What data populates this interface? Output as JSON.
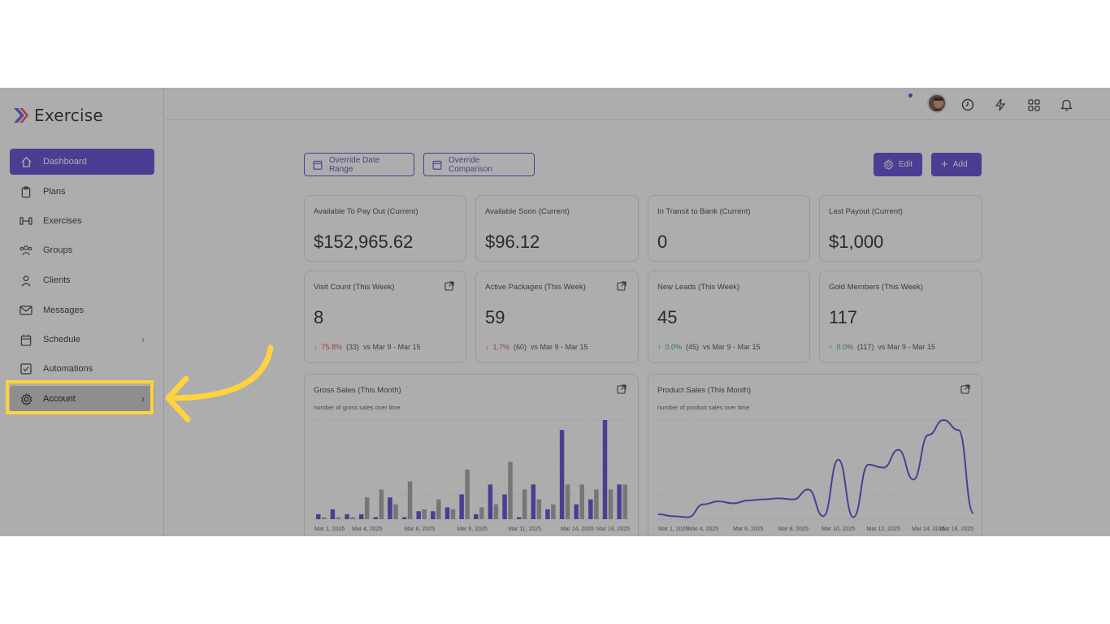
{
  "app": {
    "name": "Exercise"
  },
  "sidebar": {
    "items": [
      {
        "label": "Dashboard",
        "icon": "home-icon"
      },
      {
        "label": "Plans",
        "icon": "clipboard-icon"
      },
      {
        "label": "Exercises",
        "icon": "dumbbell-icon"
      },
      {
        "label": "Groups",
        "icon": "users-icon"
      },
      {
        "label": "Clients",
        "icon": "user-icon"
      },
      {
        "label": "Messages",
        "icon": "mail-icon"
      },
      {
        "label": "Schedule",
        "icon": "calendar-icon"
      },
      {
        "label": "Automations",
        "icon": "checkbox-icon"
      },
      {
        "label": "Account",
        "icon": "gear-icon"
      }
    ]
  },
  "toolbar": {
    "override_date": "Override Date Range",
    "override_comparison": "Override Comparison",
    "edit": "Edit",
    "add": "Add"
  },
  "stats": [
    {
      "label": "Available To Pay Out (Current)",
      "value": "$152,965.62"
    },
    {
      "label": "Available Soon (Current)",
      "value": "$96.12"
    },
    {
      "label": "In Transit to Bank (Current)",
      "value": "0"
    },
    {
      "label": "Last Payout (Current)",
      "value": "$1,000"
    }
  ],
  "weekly": [
    {
      "label": "Visit Count (This Week)",
      "value": "8",
      "pct": "75.8%",
      "prev": "(33)",
      "range": "vs Mar 9 - Mar 15",
      "dir": "down"
    },
    {
      "label": "Active Packages (This Week)",
      "value": "59",
      "pct": "1.7%",
      "prev": "(60)",
      "range": "vs Mar 9 - Mar 15",
      "dir": "down"
    },
    {
      "label": "New Leads (This Week)",
      "value": "45",
      "pct": "0.0%",
      "prev": "(45)",
      "range": "vs Mar 9 - Mar 15",
      "dir": "up"
    },
    {
      "label": "Gold Members (This Week)",
      "value": "117",
      "pct": "0.0%",
      "prev": "(117)",
      "range": "vs Mar 9 - Mar 15",
      "dir": "up"
    }
  ],
  "charts": {
    "gross": {
      "title": "Gross Sales (This Month)",
      "subtitle": "number of gross sales over time"
    },
    "product": {
      "title": "Product Sales (This Month)",
      "subtitle": "number of product sales over time"
    }
  },
  "colors": {
    "accent": "#5b3fd0",
    "highlight": "#ffd33d",
    "gray_bar": "#a0a0a0"
  },
  "chart_data": [
    {
      "type": "bar",
      "title": "Gross Sales (This Month)",
      "subtitle": "number of gross sales over time",
      "x_tick_labels": [
        "Mar 1, 2025",
        "Mar 4, 2025",
        "Mar 6, 2025",
        "Mar 8, 2025",
        "Mar 11, 2025",
        "Mar 14, 2025",
        "Mar 18, 2025"
      ],
      "series": [
        {
          "color": "#5b3fd0",
          "values": [
            5,
            10,
            5,
            5,
            2,
            22,
            2,
            8,
            8,
            12,
            25,
            5,
            35,
            25,
            2,
            35,
            10,
            90,
            15,
            20,
            100,
            35
          ]
        },
        {
          "color": "#a0a0a0",
          "values": [
            2,
            2,
            2,
            22,
            30,
            15,
            38,
            10,
            20,
            10,
            50,
            12,
            15,
            58,
            30,
            20,
            15,
            35,
            35,
            30,
            30,
            35
          ]
        }
      ],
      "grid": true
    },
    {
      "type": "line",
      "title": "Product Sales (This Month)",
      "subtitle": "number of product sales over time",
      "x_tick_labels": [
        "Mar 1, 2025",
        "Mar 4, 2025",
        "Mar 6, 2025",
        "Mar 8, 2025",
        "Mar 10, 2025",
        "Mar 12, 2025",
        "Mar 14, 2025",
        "Mar 18, 2025"
      ],
      "series": [
        {
          "color": "#5b3fd0",
          "values": [
            5,
            3,
            2,
            15,
            18,
            16,
            19,
            20,
            21,
            20,
            30,
            3,
            60,
            2,
            55,
            52,
            70,
            40,
            85,
            100,
            90,
            6
          ]
        }
      ],
      "grid": true
    }
  ]
}
